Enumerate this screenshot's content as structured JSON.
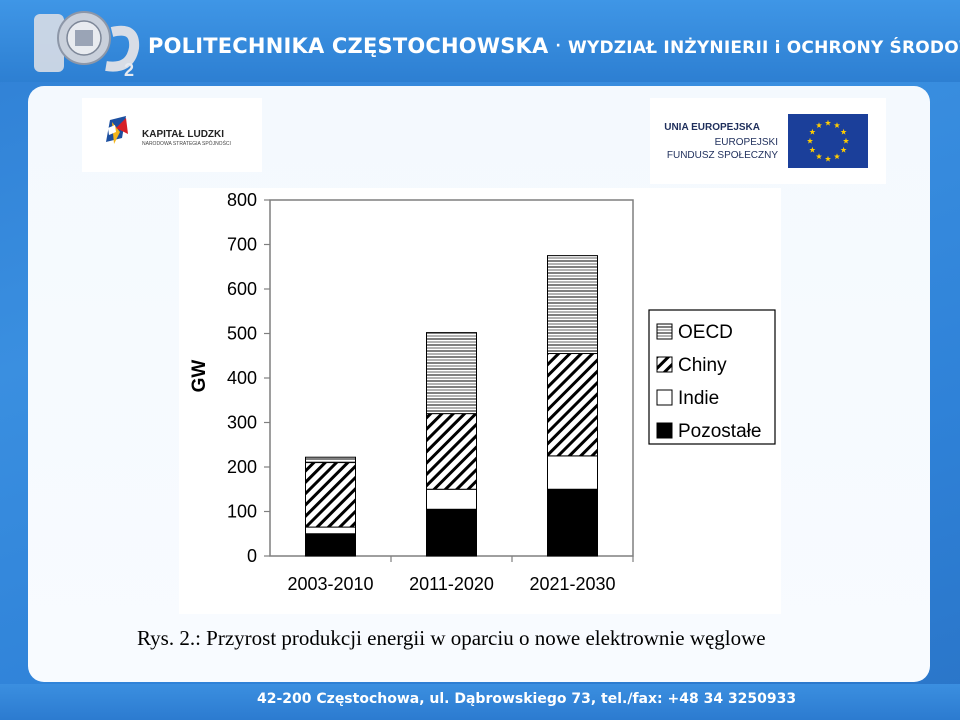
{
  "header": {
    "university": "POLITECHNIKA CZĘSTOCHOWSKA",
    "separator": "·",
    "faculty": "WYDZIAŁ INŻYNIERII i OCHRONY ŚRODOWISKA"
  },
  "logos": {
    "pcz": {
      "text": "PCz",
      "subscript": "2"
    },
    "kapital_ludzki": {
      "title": "KAPITAŁ LUDZKI",
      "subtitle": "NARODOWA STRATEGIA SPÓJNOŚCI"
    },
    "unia_europejska": {
      "line1": "UNIA EUROPEJSKA",
      "line2": "EUROPEJSKI",
      "line3": "FUNDUSZ SPOŁECZNY"
    }
  },
  "chart_data": {
    "type": "bar",
    "stacked": true,
    "title": "",
    "xlabel": "",
    "ylabel": "GW",
    "ylim": [
      0,
      800
    ],
    "yticks": [
      0,
      100,
      200,
      300,
      400,
      500,
      600,
      700,
      800
    ],
    "categories": [
      "2003-2010",
      "2011-2020",
      "2021-2030"
    ],
    "series": [
      {
        "name": "Pozostałe",
        "pattern": "solid-black",
        "values": [
          50,
          105,
          150
        ]
      },
      {
        "name": "Indie",
        "pattern": "white",
        "values": [
          15,
          45,
          75
        ]
      },
      {
        "name": "Chiny",
        "pattern": "diagonal-hatch",
        "values": [
          145,
          170,
          230
        ]
      },
      {
        "name": "OECD",
        "pattern": "horizontal-lines",
        "values": [
          12,
          182,
          220
        ]
      }
    ],
    "legend": {
      "position": "right",
      "order": [
        "OECD",
        "Chiny",
        "Indie",
        "Pozostałe"
      ]
    },
    "grid": false
  },
  "caption": "Rys. 2.: Przyrost produkcji energii w oparciu o nowe elektrownie węglowe",
  "footer": "42-200 Częstochowa, ul. Dąbrowskiego 73, tel./fax: +48 34 3250933",
  "colors": {
    "header_blue": "#2d7fd2",
    "panel": "#f4f9fe",
    "chart_black": "#000000"
  }
}
